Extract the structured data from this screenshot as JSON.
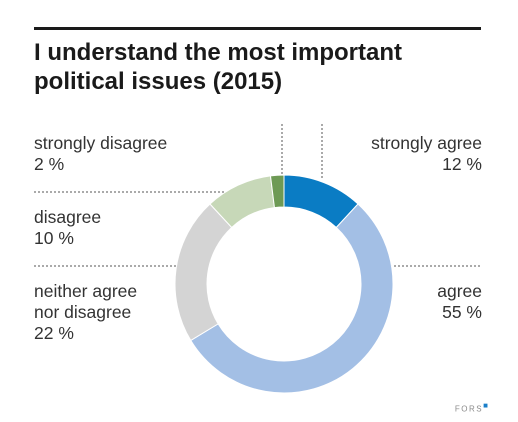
{
  "chart_data": {
    "type": "pie",
    "variant": "donut",
    "title": "I understand the most important political issues (2015)",
    "unit": "%",
    "slices": [
      {
        "label": "strongly agree",
        "value": 12,
        "value_text": "12 %",
        "color": "#0a7cc4"
      },
      {
        "label": "agree",
        "value": 55,
        "value_text": "55 %",
        "color": "#a3bfe5"
      },
      {
        "label": "neither agree nor disagree",
        "value": 22,
        "value_text": "22 %",
        "color": "#d4d4d4"
      },
      {
        "label": "disagree",
        "value": 10,
        "value_text": "10 %",
        "color": "#c7d8b8"
      },
      {
        "label": "strongly disagree",
        "value": 2,
        "value_text": "2 %",
        "color": "#6e9a55"
      }
    ],
    "start_angle_deg": 0,
    "direction": "clockwise",
    "grid": false
  },
  "labels": {
    "strongly_disagree": {
      "line1": "strongly disagree",
      "value": "2 %"
    },
    "disagree": {
      "line1": "disagree",
      "value": "10 %"
    },
    "neither": {
      "line1": "neither agree",
      "line2": "nor disagree",
      "value": "22 %"
    },
    "strongly_agree": {
      "line1": "strongly agree",
      "value": "12 %"
    },
    "agree": {
      "line1": "agree",
      "value": "55 %"
    }
  },
  "footer": {
    "brand": "FORS"
  }
}
